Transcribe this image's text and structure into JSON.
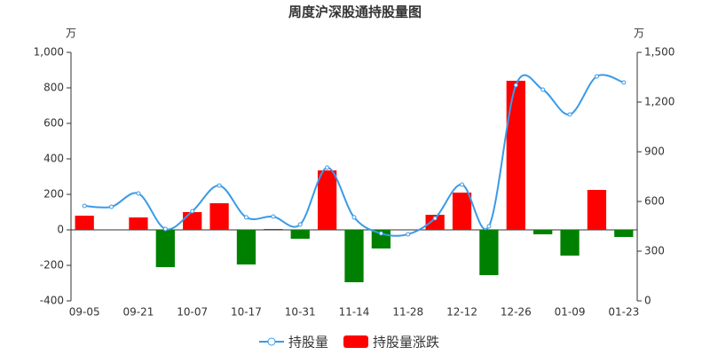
{
  "chart_data": {
    "type": "bar-line",
    "title": "周度沪深股通持股量图",
    "y_unit": "万",
    "y2_unit": "万",
    "categories": [
      "09-05",
      null,
      "09-21",
      null,
      "10-07",
      null,
      "10-17",
      null,
      "10-31",
      null,
      "11-14",
      null,
      "11-28",
      null,
      "12-12",
      null,
      "12-26",
      null,
      "01-09",
      null,
      "01-23"
    ],
    "series": [
      {
        "name": "持股量",
        "type": "line",
        "axis": "y2",
        "color": "#3a9ae8",
        "values": [
          573,
          568,
          648,
          434,
          541,
          696,
          504,
          509,
          461,
          804,
          504,
          407,
          402,
          498,
          702,
          450,
          1302,
          1275,
          1125,
          1355,
          1318
        ]
      },
      {
        "name": "持股量涨跌",
        "type": "bar",
        "color": "#ff0000",
        "down_color": "#008000",
        "values": [
          80,
          0,
          70,
          -210,
          100,
          150,
          -195,
          5,
          -50,
          335,
          -295,
          -105,
          0,
          85,
          210,
          -255,
          840,
          -25,
          -145,
          225,
          -40
        ]
      }
    ],
    "ylim": [
      -400,
      1000
    ],
    "yticks": [
      -400,
      -200,
      0,
      200,
      400,
      600,
      800,
      {
        "value": 1000,
        "label": "1,000"
      }
    ],
    "y2lim": [
      0,
      1500
    ],
    "y2ticks": [
      0,
      300,
      600,
      900,
      {
        "value": 1200,
        "label": "1,200"
      },
      {
        "value": 1500,
        "label": "1,500"
      }
    ],
    "grid": false
  }
}
